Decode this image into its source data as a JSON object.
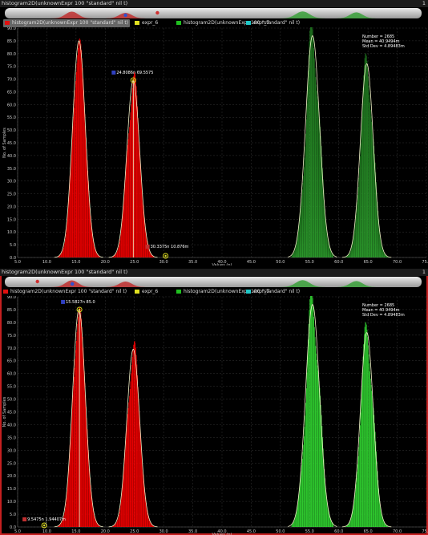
{
  "window_title": "histogram2D(unknownExpr 100 \"standard\" nil t)",
  "pin_label": "1",
  "legend": [
    {
      "label": "histogram2D(unknownExpr 100 \"standard\" nil t)",
      "color": "#e01010"
    },
    {
      "label": "expr_6",
      "color": "#e0e020"
    },
    {
      "label": "histogram2D(unknownExpr 100 \"standard\" nil t)",
      "color": "#20c020"
    },
    {
      "label": "expr_7",
      "color": "#20c8c8"
    }
  ],
  "stats": {
    "number": "Number = 2685",
    "mean": "Mean = 40.9494m",
    "std": "Std Dev = 4.89483m"
  },
  "colors": {
    "background": "#000000",
    "grid": "#333333",
    "red": "#ff0000",
    "green_top": "#1f7a1f",
    "green_bottom": "#33e033",
    "curve": "#f2f2c8",
    "marker": "#e0e020",
    "selection": "#c62020"
  },
  "chart_data": [
    {
      "type": "bar",
      "xlabel": "Values (n)",
      "ylabel": "No. of Samples",
      "xlim": [
        5.0,
        75.0
      ],
      "ylim": [
        0.0,
        90.0
      ],
      "x_ticks": [
        "5.0",
        "10.0",
        "15.0",
        "20.0",
        "25.0",
        "30.0",
        "35.0",
        "40.0",
        "45.0",
        "50.0",
        "55.0",
        "60.0",
        "65.0",
        "70.0",
        "75.0"
      ],
      "y_ticks": [
        "0.0",
        "5.0",
        "10.0",
        "15.0",
        "20.0",
        "25.0",
        "30.0",
        "35.0",
        "40.0",
        "45.0",
        "50.0",
        "55.0",
        "60.0",
        "65.0",
        "70.0",
        "75.0",
        "80.0",
        "85.0",
        "90.0"
      ],
      "grid": true,
      "series": [
        {
          "color": "red",
          "peaks": [
            {
              "center": 15.5,
              "peak": 85,
              "sigma": 1.1
            },
            {
              "center": 24.8,
              "peak": 69.5,
              "sigma": 1.1
            }
          ]
        },
        {
          "color": "green",
          "peaks": [
            {
              "center": 55.5,
              "peak": 87,
              "sigma": 1.2
            },
            {
              "center": 64.8,
              "peak": 76,
              "sigma": 1.1
            }
          ]
        }
      ],
      "markers": [
        {
          "x": 24.8086,
          "y": 69.5575,
          "label": "24.8086n 69.5575"
        },
        {
          "x": 30.3375,
          "y": 0.0,
          "label": "30.3375n 10.876m"
        }
      ]
    },
    {
      "type": "bar",
      "xlabel": "Values (n)",
      "ylabel": "No. of Samples",
      "xlim": [
        5.0,
        75.0
      ],
      "ylim": [
        0.0,
        90.0
      ],
      "x_ticks": [
        "5.0",
        "10.0",
        "15.0",
        "20.0",
        "25.0",
        "30.0",
        "35.0",
        "40.0",
        "45.0",
        "50.0",
        "55.0",
        "60.0",
        "65.0",
        "70.0",
        "75.0"
      ],
      "y_ticks": [
        "0.0",
        "5.0",
        "10.0",
        "15.0",
        "20.0",
        "25.0",
        "30.0",
        "35.0",
        "40.0",
        "45.0",
        "50.0",
        "55.0",
        "60.0",
        "65.0",
        "70.0",
        "75.0",
        "80.0",
        "85.0",
        "90.0"
      ],
      "grid": true,
      "series": [
        {
          "color": "red",
          "peaks": [
            {
              "center": 15.5,
              "peak": 85,
              "sigma": 1.1
            },
            {
              "center": 24.8,
              "peak": 69.5,
              "sigma": 1.1
            }
          ]
        },
        {
          "color": "green",
          "peaks": [
            {
              "center": 55.5,
              "peak": 87,
              "sigma": 1.2
            },
            {
              "center": 64.8,
              "peak": 76,
              "sigma": 1.1
            }
          ]
        }
      ],
      "markers": [
        {
          "x": 15.5827,
          "y": 85.0,
          "label": "15.5827n 85.0"
        },
        {
          "x": 9.5475,
          "y": 0.0,
          "label": "9.5475n 1.94407m"
        }
      ]
    }
  ]
}
